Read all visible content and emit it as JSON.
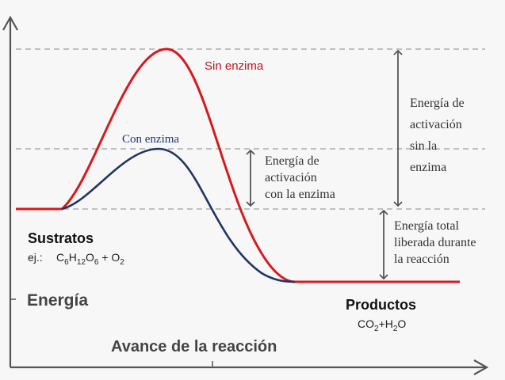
{
  "labels": {
    "sin_enzima": "Sin enzima",
    "con_enzima": "Con enzima",
    "ea_con_enzima": [
      "Energía de",
      "activación",
      "con la enzima"
    ],
    "ea_sin_enzima": [
      "Energía de",
      "activación",
      "sin la",
      "enzima"
    ],
    "energia_liberada": [
      "Energía total",
      "liberada durante",
      "la reacción"
    ],
    "sustratos": "Sustratos",
    "sustratos_ejemplo": {
      "prefix": "ej.:",
      "formula": [
        {
          "t": "C"
        },
        {
          "t": "6",
          "sub": true
        },
        {
          "t": "H"
        },
        {
          "t": "12",
          "sub": true
        },
        {
          "t": "O"
        },
        {
          "t": "6",
          "sub": true
        },
        {
          "t": " + O"
        },
        {
          "t": "2",
          "sub": true
        }
      ]
    },
    "energia_axis": "Energía",
    "productos": "Productos",
    "productos_formula": [
      {
        "t": "CO"
      },
      {
        "t": "2",
        "sub": true
      },
      {
        "t": "+H"
      },
      {
        "t": "2",
        "sub": true
      },
      {
        "t": "O"
      }
    ],
    "x_axis": "Avance de la reacción"
  },
  "colors": {
    "sin_enzima_curve": "#d7191c",
    "con_enzima_curve": "#1f3563",
    "axis": "#555555",
    "dashed": "#a0a0a0",
    "label_text": "#333333"
  }
}
